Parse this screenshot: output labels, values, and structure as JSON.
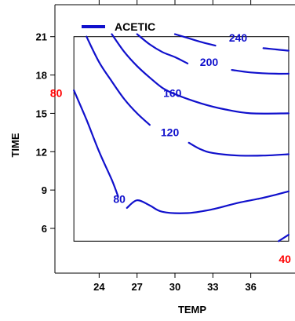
{
  "chart_data": {
    "type": "line",
    "subtype": "contour",
    "title": "",
    "xlabel": "TEMP",
    "ylabel": "TIME",
    "xlim": [
      20.5,
      39.5
    ],
    "ylim": [
      2.5,
      23.5
    ],
    "plot_region": {
      "x": [
        22,
        39
      ],
      "y": [
        5,
        21
      ]
    },
    "xticks": [
      24,
      27,
      30,
      33,
      36
    ],
    "yticks": [
      6,
      9,
      12,
      15,
      18,
      21
    ],
    "legend": {
      "label": "ACETIC",
      "position": "top-left"
    },
    "series_color": "#1010cc",
    "annotation_color": "#ff0000",
    "contours": [
      {
        "level": "80",
        "points": [
          [
            22,
            16.8
          ],
          [
            23,
            14.5
          ],
          [
            24,
            12.0
          ],
          [
            25,
            9.8
          ],
          [
            25.5,
            8.5
          ]
        ]
      },
      {
        "level": "80",
        "points": [
          [
            26.2,
            7.6
          ],
          [
            27,
            8.2
          ],
          [
            28,
            7.8
          ],
          [
            29,
            7.3
          ],
          [
            31,
            7.2
          ],
          [
            33,
            7.5
          ],
          [
            35,
            8.0
          ],
          [
            37,
            8.4
          ],
          [
            39,
            8.9
          ]
        ]
      },
      {
        "level": "120",
        "points": [
          [
            23.0,
            21.0
          ],
          [
            24,
            19.0
          ],
          [
            25,
            17.5
          ],
          [
            26,
            16.1
          ],
          [
            27,
            15.0
          ],
          [
            28,
            14.1
          ]
        ]
      },
      {
        "level": "120",
        "points": [
          [
            31.1,
            12.7
          ],
          [
            32,
            12.2
          ],
          [
            33,
            11.9
          ],
          [
            35,
            11.7
          ],
          [
            37,
            11.7
          ],
          [
            39,
            11.8
          ]
        ]
      },
      {
        "level": "160",
        "points": [
          [
            25.0,
            21.2
          ],
          [
            26,
            19.8
          ],
          [
            27,
            18.7
          ],
          [
            28,
            17.8
          ],
          [
            29,
            17.0
          ],
          [
            30,
            16.5
          ],
          [
            32,
            15.8
          ],
          [
            34,
            15.3
          ],
          [
            36,
            15.0
          ],
          [
            39,
            15.0
          ]
        ]
      },
      {
        "level": "200",
        "points": [
          [
            27.0,
            21.2
          ],
          [
            28,
            20.4
          ],
          [
            29,
            19.8
          ],
          [
            30,
            19.4
          ],
          [
            31,
            18.9
          ]
        ]
      },
      {
        "level": "200",
        "points": [
          [
            34.5,
            18.4
          ],
          [
            36,
            18.2
          ],
          [
            38,
            18.1
          ],
          [
            39,
            18.1
          ]
        ]
      },
      {
        "level": "240",
        "points": [
          [
            30.0,
            21.2
          ],
          [
            31,
            20.9
          ],
          [
            32,
            20.6
          ],
          [
            33.2,
            20.3
          ]
        ]
      },
      {
        "level": "240",
        "points": [
          [
            37.0,
            20.1
          ],
          [
            38,
            20.0
          ],
          [
            39,
            19.9
          ]
        ]
      },
      {
        "level": "",
        "points": [
          [
            38.2,
            5.0
          ],
          [
            39,
            5.5
          ]
        ]
      }
    ],
    "contour_labels": [
      {
        "text": "80",
        "x": 25.6,
        "y": 8.0
      },
      {
        "text": "120",
        "x": 29.6,
        "y": 13.2
      },
      {
        "text": "160",
        "x": 29.8,
        "y": 16.3
      },
      {
        "text": "200",
        "x": 32.7,
        "y": 18.7
      },
      {
        "text": "240",
        "x": 35.0,
        "y": 20.6
      }
    ],
    "annotations": [
      {
        "text": "80",
        "x": 20.6,
        "y": 16.3,
        "color": "#ff0000"
      },
      {
        "text": "40",
        "x": 38.7,
        "y": 3.3,
        "color": "#ff0000"
      }
    ]
  }
}
